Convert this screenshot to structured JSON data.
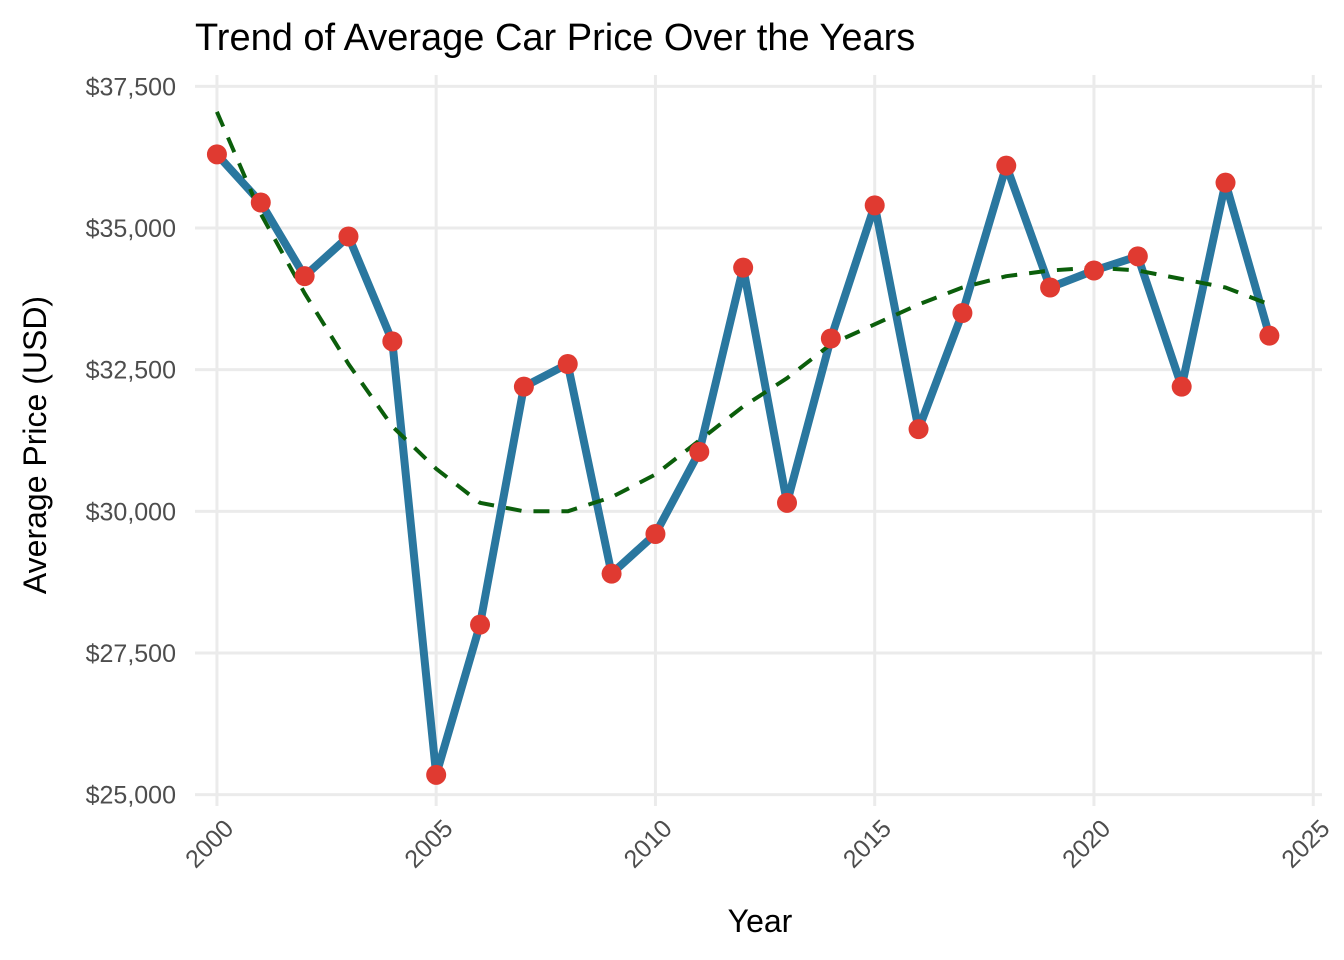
{
  "chart_data": {
    "type": "line",
    "title": "Trend of Average Car Price Over the Years",
    "xlabel": "Year",
    "ylabel": "Average Price (USD)",
    "xlim": [
      1999.5,
      2025.2
    ],
    "ylim": [
      24800,
      37700
    ],
    "x_ticks": [
      2000,
      2005,
      2010,
      2015,
      2020,
      2025
    ],
    "x_tick_labels": [
      "2000",
      "2005",
      "2010",
      "2015",
      "2020",
      "2025"
    ],
    "y_ticks": [
      25000,
      27500,
      30000,
      32500,
      35000,
      37500
    ],
    "y_tick_labels": [
      "$25,000",
      "$27,500",
      "$30,000",
      "$32,500",
      "$35,000",
      "$37,500"
    ],
    "grid": true,
    "legend": "none",
    "x": [
      2000,
      2001,
      2002,
      2003,
      2004,
      2005,
      2006,
      2007,
      2008,
      2009,
      2010,
      2011,
      2012,
      2013,
      2014,
      2015,
      2016,
      2017,
      2018,
      2019,
      2020,
      2021,
      2022,
      2023,
      2024
    ],
    "series": [
      {
        "values": [
          36300,
          35450,
          34150,
          34850,
          33000,
          25350,
          28000,
          32200,
          32600,
          28900,
          29600,
          31050,
          34300,
          30150,
          33050,
          35400,
          31450,
          33500,
          36100,
          33950,
          34250,
          34500,
          32200,
          35800,
          33100
        ],
        "style": "solid-line-with-points",
        "line_color": "#2A779F",
        "point_color": "#E03A31"
      },
      {
        "values": [
          37050,
          35250,
          33850,
          32600,
          31500,
          30750,
          30150,
          30000,
          30000,
          30250,
          30650,
          31250,
          31850,
          32350,
          32950,
          33300,
          33650,
          33950,
          34150,
          34250,
          34300,
          34250,
          34100,
          33950,
          33650
        ],
        "style": "dashed-trend-line",
        "line_color": "#0B5E0B"
      }
    ]
  }
}
